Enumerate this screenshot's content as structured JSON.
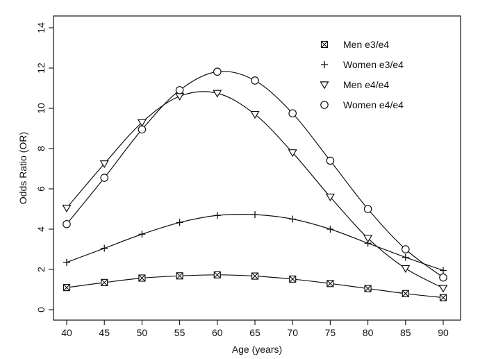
{
  "chart_data": {
    "type": "line",
    "title": "",
    "xlabel": "Age (years)",
    "ylabel": "Odds Ratio (OR)",
    "xlim": [
      40,
      90
    ],
    "ylim": [
      0,
      14
    ],
    "x": [
      40,
      45,
      50,
      55,
      60,
      65,
      70,
      75,
      80,
      85,
      90
    ],
    "xticks": [
      "40",
      "45",
      "50",
      "55",
      "60",
      "65",
      "70",
      "75",
      "80",
      "85",
      "90"
    ],
    "yticks": [
      "0",
      "2",
      "4",
      "6",
      "8",
      "10",
      "12",
      "14"
    ],
    "grid": false,
    "legend_position": "top-right",
    "series": [
      {
        "name": "Men e3/e4",
        "marker": "square-x",
        "values": [
          1.1,
          1.35,
          1.57,
          1.68,
          1.73,
          1.67,
          1.52,
          1.3,
          1.05,
          0.8,
          0.6
        ]
      },
      {
        "name": "Women e3/e4",
        "marker": "plus",
        "values": [
          2.35,
          3.05,
          3.75,
          4.33,
          4.68,
          4.72,
          4.5,
          4.0,
          3.3,
          2.6,
          1.95
        ]
      },
      {
        "name": "Men e4/e4",
        "marker": "triangle-down",
        "values": [
          5.05,
          7.25,
          9.3,
          10.6,
          10.75,
          9.7,
          7.8,
          5.6,
          3.55,
          2.05,
          1.07
        ]
      },
      {
        "name": "Women e4/e4",
        "marker": "circle",
        "values": [
          4.25,
          6.55,
          8.95,
          10.9,
          11.82,
          11.38,
          9.75,
          7.4,
          5.0,
          3.0,
          1.6
        ]
      }
    ],
    "colors": {
      "line": "#111111",
      "background": "#ffffff"
    }
  }
}
